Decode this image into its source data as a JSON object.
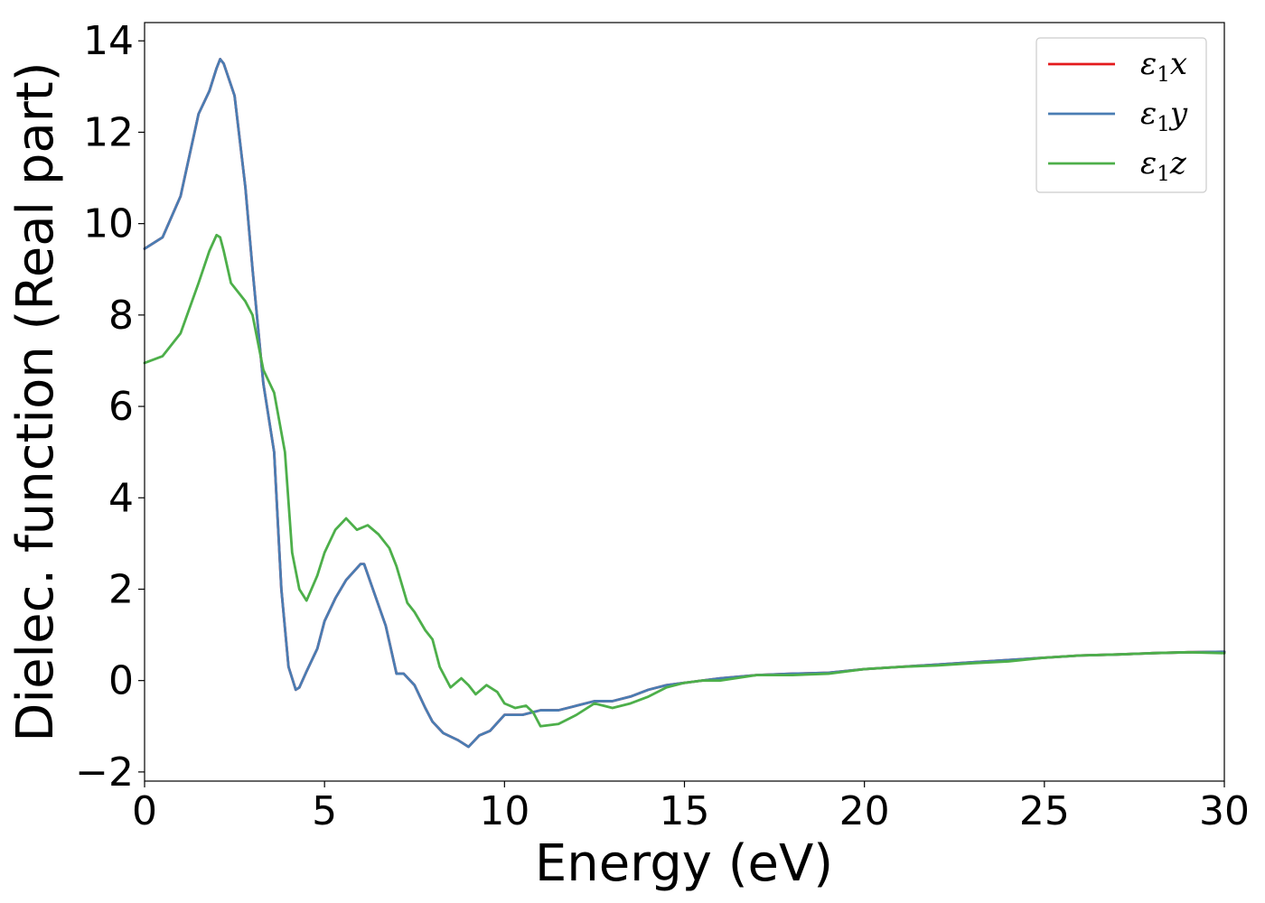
{
  "chart_data": {
    "type": "line",
    "title": "",
    "xlabel": "Energy (eV)",
    "ylabel": "Dielec. function (Real part)",
    "xlim": [
      0,
      30
    ],
    "ylim": [
      -2.2,
      14.4
    ],
    "xticks": [
      0,
      5,
      10,
      15,
      20,
      25,
      30
    ],
    "xtick_labels": [
      "0",
      "5",
      "10",
      "15",
      "20",
      "25",
      "30"
    ],
    "yticks": [
      -2,
      0,
      2,
      4,
      6,
      8,
      10,
      12,
      14
    ],
    "ytick_labels": [
      "−2",
      "0",
      "2",
      "4",
      "6",
      "8",
      "10",
      "12",
      "14"
    ],
    "grid": false,
    "legend_position": "top-right",
    "series": [
      {
        "name": "ε₁x",
        "legend_main": "ε",
        "legend_sub": "1",
        "legend_suffix": "x",
        "color": "#e41a1c",
        "x": [
          0,
          0.5,
          1.0,
          1.5,
          1.8,
          2.0,
          2.1,
          2.2,
          2.5,
          2.8,
          3.0,
          3.3,
          3.6,
          3.8,
          4.0,
          4.2,
          4.3,
          4.5,
          4.8,
          5.0,
          5.3,
          5.6,
          6.0,
          6.1,
          6.3,
          6.7,
          7.0,
          7.2,
          7.5,
          7.8,
          8.0,
          8.3,
          8.7,
          9.0,
          9.3,
          9.6,
          10.0,
          10.5,
          11.0,
          11.5,
          12.0,
          12.5,
          13.0,
          13.5,
          14.0,
          14.5,
          15.0,
          15.5,
          16.0,
          17.0,
          18.0,
          19.0,
          20.0,
          21.0,
          22.0,
          23.0,
          24.0,
          25.0,
          26.0,
          27.0,
          28.0,
          29.0,
          30.0
        ],
        "y": [
          9.45,
          9.7,
          10.6,
          12.4,
          12.9,
          13.4,
          13.6,
          13.5,
          12.8,
          10.8,
          9.0,
          6.5,
          5.0,
          2.0,
          0.3,
          -0.2,
          -0.15,
          0.2,
          0.7,
          1.3,
          1.8,
          2.2,
          2.55,
          2.55,
          2.1,
          1.2,
          0.15,
          0.15,
          -0.1,
          -0.6,
          -0.9,
          -1.15,
          -1.3,
          -1.45,
          -1.2,
          -1.1,
          -0.75,
          -0.75,
          -0.65,
          -0.65,
          -0.55,
          -0.45,
          -0.45,
          -0.35,
          -0.2,
          -0.1,
          -0.05,
          0.0,
          0.05,
          0.12,
          0.15,
          0.17,
          0.25,
          0.3,
          0.35,
          0.4,
          0.45,
          0.5,
          0.55,
          0.57,
          0.6,
          0.62,
          0.63
        ]
      },
      {
        "name": "ε₁y",
        "legend_main": "ε",
        "legend_sub": "1",
        "legend_suffix": "y",
        "color": "#4a7db3",
        "x": [
          0,
          0.5,
          1.0,
          1.5,
          1.8,
          2.0,
          2.1,
          2.2,
          2.5,
          2.8,
          3.0,
          3.3,
          3.6,
          3.8,
          4.0,
          4.2,
          4.3,
          4.5,
          4.8,
          5.0,
          5.3,
          5.6,
          6.0,
          6.1,
          6.3,
          6.7,
          7.0,
          7.2,
          7.5,
          7.8,
          8.0,
          8.3,
          8.7,
          9.0,
          9.3,
          9.6,
          10.0,
          10.5,
          11.0,
          11.5,
          12.0,
          12.5,
          13.0,
          13.5,
          14.0,
          14.5,
          15.0,
          15.5,
          16.0,
          17.0,
          18.0,
          19.0,
          20.0,
          21.0,
          22.0,
          23.0,
          24.0,
          25.0,
          26.0,
          27.0,
          28.0,
          29.0,
          30.0
        ],
        "y": [
          9.45,
          9.7,
          10.6,
          12.4,
          12.9,
          13.4,
          13.6,
          13.5,
          12.8,
          10.8,
          9.0,
          6.5,
          5.0,
          2.0,
          0.3,
          -0.2,
          -0.15,
          0.2,
          0.7,
          1.3,
          1.8,
          2.2,
          2.55,
          2.55,
          2.1,
          1.2,
          0.15,
          0.15,
          -0.1,
          -0.6,
          -0.9,
          -1.15,
          -1.3,
          -1.45,
          -1.2,
          -1.1,
          -0.75,
          -0.75,
          -0.65,
          -0.65,
          -0.55,
          -0.45,
          -0.45,
          -0.35,
          -0.2,
          -0.1,
          -0.05,
          0.0,
          0.05,
          0.12,
          0.15,
          0.17,
          0.25,
          0.3,
          0.35,
          0.4,
          0.45,
          0.5,
          0.55,
          0.57,
          0.6,
          0.62,
          0.63
        ]
      },
      {
        "name": "ε₁z",
        "legend_main": "ε",
        "legend_sub": "1",
        "legend_suffix": "z",
        "color": "#4daf4a",
        "x": [
          0,
          0.5,
          1.0,
          1.5,
          1.8,
          2.0,
          2.1,
          2.2,
          2.4,
          2.6,
          2.8,
          3.0,
          3.3,
          3.6,
          3.9,
          4.1,
          4.3,
          4.5,
          4.8,
          5.0,
          5.3,
          5.6,
          5.9,
          6.2,
          6.5,
          6.8,
          7.0,
          7.3,
          7.5,
          7.8,
          8.0,
          8.2,
          8.5,
          8.8,
          9.0,
          9.2,
          9.5,
          9.8,
          10.0,
          10.3,
          10.6,
          10.8,
          11.0,
          11.5,
          12.0,
          12.5,
          13.0,
          13.5,
          14.0,
          14.5,
          15.0,
          15.5,
          16.0,
          17.0,
          18.0,
          19.0,
          20.0,
          21.0,
          22.0,
          23.0,
          24.0,
          25.0,
          26.0,
          27.0,
          28.0,
          29.0,
          30.0
        ],
        "y": [
          6.95,
          7.1,
          7.6,
          8.7,
          9.4,
          9.75,
          9.7,
          9.4,
          8.7,
          8.5,
          8.3,
          8.0,
          6.8,
          6.3,
          5.0,
          2.8,
          2.0,
          1.75,
          2.3,
          2.8,
          3.3,
          3.55,
          3.3,
          3.4,
          3.2,
          2.9,
          2.5,
          1.7,
          1.5,
          1.1,
          0.9,
          0.3,
          -0.15,
          0.05,
          -0.1,
          -0.3,
          -0.1,
          -0.25,
          -0.5,
          -0.6,
          -0.55,
          -0.7,
          -1.0,
          -0.95,
          -0.75,
          -0.5,
          -0.6,
          -0.5,
          -0.35,
          -0.15,
          -0.05,
          0.0,
          0.0,
          0.12,
          0.12,
          0.15,
          0.25,
          0.3,
          0.33,
          0.38,
          0.42,
          0.5,
          0.55,
          0.57,
          0.6,
          0.62,
          0.6
        ]
      }
    ]
  }
}
